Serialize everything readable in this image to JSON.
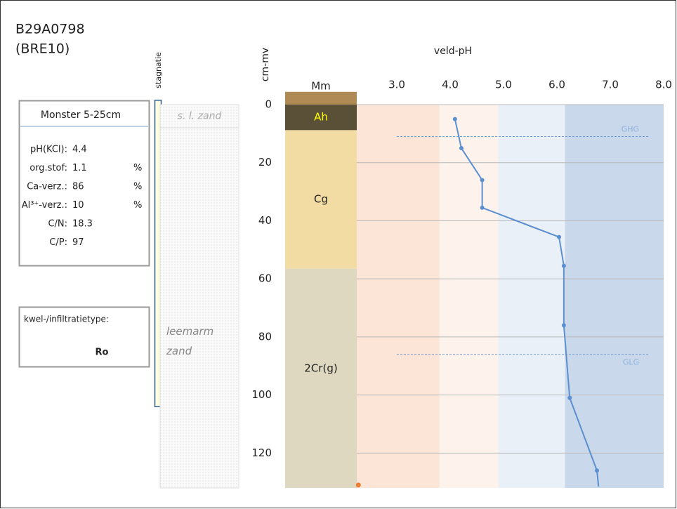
{
  "header": {
    "id": "B29A0798",
    "code": "(BRE10)"
  },
  "sample": {
    "title": "Monster 5-25cm",
    "rows": [
      {
        "label": "pH(KCl):",
        "value": 4.4
      },
      {
        "label": "org.stof:",
        "value": 1.1,
        "unit": "%"
      },
      {
        "label": "Ca-verz.:",
        "value": 86,
        "unit": "%"
      },
      {
        "label": "Al³⁺-verz.:",
        "value": 10,
        "unit": "%"
      },
      {
        "label": "C/N:",
        "value": 18.3
      },
      {
        "label": "C/P:",
        "value": 97
      }
    ]
  },
  "seepage": {
    "label": "kwel-/infiltratietype:",
    "value": "Ro"
  },
  "chart_data": {
    "type": "line",
    "x_label": "veld-pH",
    "y_label": "cm-mv",
    "stagnation_label": "stagnatie",
    "stagnation": {
      "top": -1.5,
      "bottom": 104
    },
    "xlim": [
      2.25,
      8.0
    ],
    "xticks": [
      {
        "value": 3,
        "label": "3.0"
      },
      {
        "value": 4,
        "label": "4.0"
      },
      {
        "value": 5,
        "label": "5.0"
      },
      {
        "value": 6,
        "label": "6.0"
      },
      {
        "value": 7,
        "label": "7.0"
      },
      {
        "value": 8,
        "label": "8.0"
      }
    ],
    "ylim": [
      0,
      132
    ],
    "yticks": [
      0,
      20,
      40,
      60,
      80,
      100,
      120
    ],
    "grid": true,
    "bands": [
      {
        "from": 2.25,
        "to": 3.8,
        "color": "#fce4d6"
      },
      {
        "from": 3.8,
        "to": 4.9,
        "color": "#fdf3ec"
      },
      {
        "from": 4.9,
        "to": 6.15,
        "color": "#eaf0f8"
      },
      {
        "from": 6.15,
        "to": 8.0,
        "color": "#c9d8eb"
      }
    ],
    "horizons": [
      {
        "label": "Mm",
        "top": -4.4,
        "bottom": 0,
        "color": "#b08a55",
        "text_color": "#222222"
      },
      {
        "label": "Ah",
        "top": 0,
        "bottom": 8.8,
        "color": "#5a5038",
        "text_color": "#ffff00"
      },
      {
        "label": "Cg",
        "top": 8.8,
        "bottom": 56.5,
        "color": "#f2dca4",
        "text_color": "#222222"
      },
      {
        "label": "2Cr(g)",
        "top": 56.5,
        "bottom": 132,
        "color": "#ddd8bf",
        "text_color": "#222222"
      }
    ],
    "textures": [
      {
        "label": "s. l. zand",
        "top": 0,
        "bottom": 8
      },
      {
        "label": "leemarm zand",
        "top": 8,
        "bottom": 132
      }
    ],
    "reference_lines": [
      {
        "label": "GHG",
        "depth": 11
      },
      {
        "label": "GLG",
        "depth": 86
      }
    ],
    "line": {
      "color": "#5b8fd0",
      "depth": [
        5,
        15,
        26,
        35.5,
        45.6,
        55.5,
        76,
        101,
        126,
        131.5
      ],
      "ph": [
        4.09,
        4.21,
        4.6,
        4.6,
        6.04,
        6.13,
        6.13,
        6.24,
        6.75,
        6.78
      ]
    },
    "point": {
      "ph": 2.28,
      "depth": 131,
      "color": "#ed7d31"
    }
  }
}
